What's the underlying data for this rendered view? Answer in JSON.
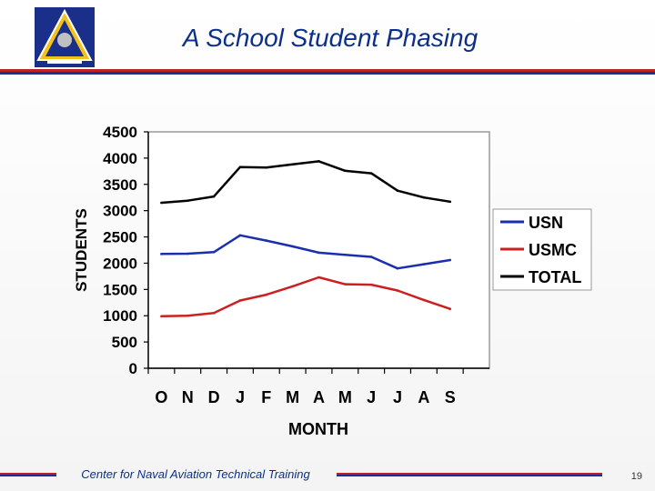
{
  "title": "A School Student Phasing",
  "footer": {
    "text": "Center for Naval Aviation Technical Training",
    "page_number": "19"
  },
  "colors": {
    "title": "#0b2f8a",
    "rule_red": "#bb2222",
    "rule_blue": "#1a2f9b"
  },
  "logo": {
    "icon": "naval-aviation-triangle-emblem-icon"
  },
  "chart_data": {
    "type": "line",
    "title": "",
    "xlabel": "MONTH",
    "ylabel": "STUDENTS",
    "ylim": [
      0,
      4500
    ],
    "yticks": [
      0,
      500,
      1000,
      1500,
      2000,
      2500,
      3000,
      3500,
      4000,
      4500
    ],
    "categories": [
      "O",
      "N",
      "D",
      "J",
      "F",
      "M",
      "A",
      "M",
      "J",
      "J",
      "A",
      "S"
    ],
    "grid": false,
    "legend_position": "right",
    "series": [
      {
        "name": "USN",
        "color": "#1a2fae",
        "values": [
          2175,
          2180,
          2210,
          2530,
          2430,
          2320,
          2200,
          2160,
          2120,
          1900,
          1980,
          2060
        ]
      },
      {
        "name": "USMC",
        "color": "#cc2020",
        "values": [
          990,
          1000,
          1050,
          1290,
          1400,
          1560,
          1730,
          1600,
          1590,
          1480,
          1300,
          1130
        ]
      },
      {
        "name": "TOTAL",
        "color": "#000000",
        "values": [
          3150,
          3190,
          3270,
          3830,
          3820,
          3880,
          3940,
          3760,
          3710,
          3380,
          3250,
          3170
        ]
      }
    ]
  }
}
